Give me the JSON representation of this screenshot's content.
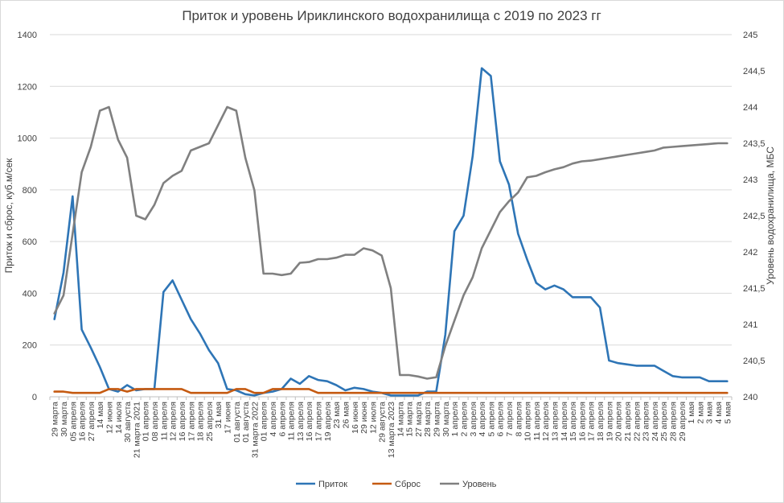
{
  "chart_data": {
    "type": "line",
    "title": "Приток и уровень Ириклинского водохранилища с 2019 по 2023 гг",
    "ylabel": "Приток и сброс, куб.м/сек",
    "y2label": "Уровень водохранилища, МБС",
    "ylim": [
      0,
      1400
    ],
    "yticks": [
      "0",
      "200",
      "400",
      "600",
      "800",
      "1000",
      "1200",
      "1400"
    ],
    "y2lim": [
      240,
      245
    ],
    "y2ticks": [
      "240",
      "240,5",
      "241",
      "241,5",
      "242",
      "242,5",
      "243",
      "243,5",
      "244",
      "244,5",
      "245"
    ],
    "grid": true,
    "legend": "bottom",
    "x": [
      "29 марта",
      "30 марта",
      "05 апреля",
      "16 апреля",
      "27 апреля",
      "14 мая",
      "12 июня",
      "14 июля",
      "30 августа",
      "21 марта 2021",
      "01 апреля",
      "08 апреля",
      "11 апреля",
      "12 апреля",
      "16 апреля",
      "17 апреля",
      "18 апреля",
      "25 апреля",
      "31 мая",
      "17 июня",
      "01 августа",
      "01 августа",
      "31 марта 2022",
      "01 апреля",
      "4 апреля",
      "6 апреля",
      "11 апреля",
      "13 апреля",
      "16 апреля",
      "17 апреля",
      "19 апреля",
      "23 мая",
      "26 мая",
      "16 июня",
      "29 июня",
      "12 июля",
      "29 августа",
      "13 марта 2023",
      "14 марта",
      "15 марта",
      "27 марта",
      "28 марта",
      "29 марта",
      "30 марта",
      "1 апреля",
      "2 апреля",
      "3 апреля",
      "4 апреля",
      "5 апреля",
      "6 апреля",
      "7 апреля",
      "8 апреля",
      "10 апреля",
      "11 апреля",
      "12 апреля",
      "13 апреля",
      "14 апреля",
      "15 апреля",
      "16 апреля",
      "17 апреля",
      "18 апреля",
      "19 апреля",
      "20 апреля",
      "21 апреля",
      "22 апреля",
      "23 апреля",
      "24 апреля",
      "25 апреля",
      "28 апреля",
      "29 апреля",
      "1 мая",
      "2 мая",
      "3 мая",
      "4 мая",
      "5 мая"
    ],
    "series": [
      {
        "name": "Приток",
        "color": "#2e75b6",
        "axis": "left",
        "values": [
          300,
          480,
          775,
          260,
          190,
          115,
          30,
          20,
          45,
          25,
          30,
          30,
          405,
          450,
          375,
          300,
          245,
          180,
          130,
          30,
          25,
          10,
          5,
          15,
          20,
          30,
          70,
          50,
          80,
          65,
          60,
          45,
          25,
          35,
          30,
          20,
          15,
          5,
          5,
          5,
          5,
          20,
          20,
          240,
          640,
          700,
          930,
          1270,
          1240,
          910,
          820,
          630,
          530,
          440,
          415,
          430,
          415,
          385,
          385,
          385,
          345,
          140,
          130,
          125,
          120,
          120,
          120,
          100,
          80,
          75,
          75,
          75,
          60,
          60,
          60
        ]
      },
      {
        "name": "Сброс",
        "color": "#c55a11",
        "axis": "left",
        "values": [
          20,
          20,
          15,
          15,
          15,
          15,
          30,
          30,
          20,
          30,
          30,
          30,
          30,
          30,
          30,
          15,
          15,
          15,
          15,
          15,
          30,
          30,
          15,
          15,
          30,
          30,
          30,
          30,
          30,
          15,
          15,
          15,
          15,
          15,
          15,
          15,
          15,
          15,
          15,
          15,
          15,
          15,
          15,
          15,
          15,
          15,
          15,
          15,
          15,
          15,
          15,
          15,
          15,
          15,
          15,
          15,
          15,
          15,
          15,
          15,
          15,
          15,
          15,
          15,
          15,
          15,
          15,
          15,
          15,
          15,
          15,
          15,
          15,
          15,
          15
        ]
      },
      {
        "name": "Уровень",
        "color": "#808080",
        "axis": "right",
        "values": [
          241.15,
          241.4,
          242.25,
          243.1,
          243.45,
          243.95,
          244.0,
          243.55,
          243.3,
          242.5,
          242.45,
          242.65,
          242.95,
          243.05,
          243.12,
          243.4,
          243.45,
          243.5,
          243.75,
          244.0,
          243.95,
          243.3,
          242.85,
          241.7,
          241.7,
          241.68,
          241.7,
          241.85,
          241.86,
          241.9,
          241.9,
          241.92,
          241.96,
          241.96,
          242.05,
          242.02,
          241.95,
          241.5,
          240.3,
          240.3,
          240.28,
          240.25,
          240.27,
          240.7,
          241.05,
          241.4,
          241.65,
          242.05,
          242.3,
          242.55,
          242.7,
          242.82,
          243.03,
          243.05,
          243.1,
          243.14,
          243.17,
          243.22,
          243.25,
          243.26,
          243.28,
          243.3,
          243.32,
          243.34,
          243.36,
          243.38,
          243.4,
          243.44,
          243.45,
          243.46,
          243.47,
          243.48,
          243.49,
          243.5,
          243.5
        ]
      }
    ]
  }
}
